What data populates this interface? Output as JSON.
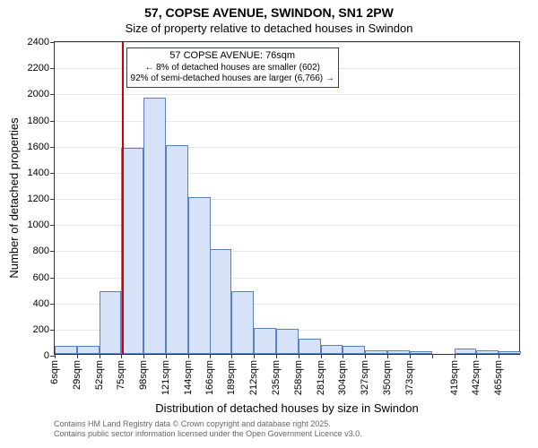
{
  "title_line1": "57, COPSE AVENUE, SWINDON, SN1 2PW",
  "title_line2": "Size of property relative to detached houses in Swindon",
  "ylabel": "Number of detached properties",
  "xlabel": "Distribution of detached houses by size in Swindon",
  "footer_line1": "Contains HM Land Registry data © Crown copyright and database right 2025.",
  "footer_line2": "Contains public sector information licensed under the Open Government Licence v3.0.",
  "annotation": {
    "line1": "57 COPSE AVENUE: 76sqm",
    "line2": "← 8% of detached houses are smaller (602)",
    "line3": "92% of semi-detached houses are larger (6,766) →",
    "marker_x_value": 76
  },
  "chart": {
    "type": "histogram",
    "background_color": "#ffffff",
    "bar_fill": "#d6e2f7",
    "bar_stroke": "#5b7fbf",
    "marker_line_color": "#cc0000",
    "annotation_border": "#cc0000",
    "grid_color": "#333333",
    "grid_opacity": 0.12,
    "ylim": [
      0,
      2400
    ],
    "ytick_step": 200,
    "xlim": [
      6,
      488
    ],
    "bin_width": 23,
    "x_ticks": [
      6,
      29,
      52,
      75,
      98,
      121,
      144,
      166,
      189,
      212,
      235,
      258,
      281,
      304,
      327,
      350,
      373,
      396,
      419,
      442,
      465
    ],
    "x_tick_labels": [
      "6sqm",
      "29sqm",
      "52sqm",
      "75sqm",
      "98sqm",
      "121sqm",
      "144sqm",
      "166sqm",
      "189sqm",
      "212sqm",
      "235sqm",
      "258sqm",
      "281sqm",
      "304sqm",
      "327sqm",
      "350sqm",
      "373sqm",
      "",
      "419sqm",
      "442sqm",
      "465sqm"
    ],
    "values": [
      60,
      60,
      480,
      1580,
      1960,
      1600,
      1200,
      800,
      480,
      200,
      190,
      120,
      70,
      60,
      30,
      30,
      20,
      0,
      40,
      30,
      20
    ],
    "title_fontsize": 14,
    "subtitle_fontsize": 13,
    "axis_label_fontsize": 13,
    "tick_fontsize": 11,
    "annotation_fontsize": 10,
    "footer_fontsize": 9
  }
}
